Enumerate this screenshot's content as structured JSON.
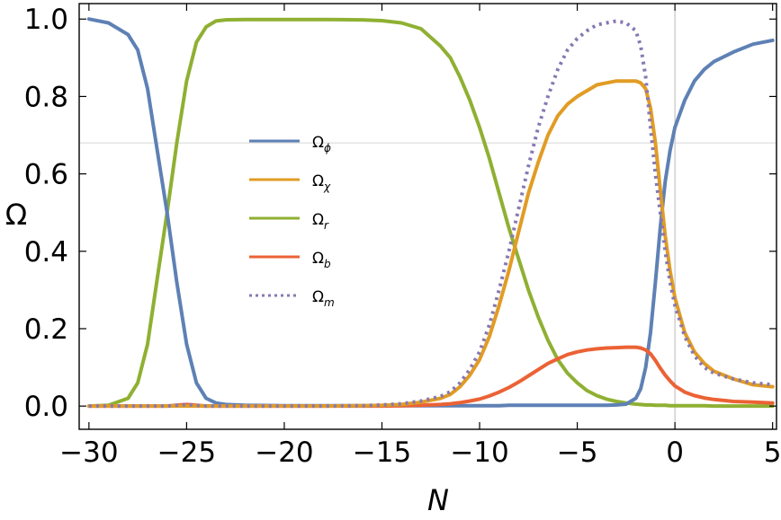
{
  "chart_data": {
    "type": "line",
    "xlabel": "N",
    "ylabel": "Ω",
    "xlim": [
      -30.5,
      5.2
    ],
    "ylim": [
      -0.06,
      1.04
    ],
    "xticks": [
      -30,
      -25,
      -20,
      -15,
      -10,
      -5,
      0,
      5
    ],
    "xtick_labels": [
      "−30",
      "−25",
      "−20",
      "−15",
      "−10",
      "−5",
      "0",
      "5"
    ],
    "yticks": [
      0.0,
      0.2,
      0.4,
      0.6,
      0.8,
      1.0
    ],
    "ytick_labels": [
      "0.0",
      "0.2",
      "0.4",
      "0.6",
      "0.8",
      "1.0"
    ],
    "reference_lines": {
      "vertical_x": 0,
      "horizontal_y": 0.68
    },
    "grid": false,
    "legend_position": "center-left",
    "x": [
      -30,
      -29,
      -28,
      -27.5,
      -27,
      -26.5,
      -26,
      -25.5,
      -25,
      -24.5,
      -24,
      -23.5,
      -23,
      -22,
      -20,
      -18,
      -16,
      -15,
      -14,
      -13,
      -12,
      -11.5,
      -11,
      -10.5,
      -10,
      -9.5,
      -9,
      -8.5,
      -8,
      -7.5,
      -7,
      -6.5,
      -6,
      -5.5,
      -5,
      -4.5,
      -4,
      -3.5,
      -3,
      -2.5,
      -2,
      -1.75,
      -1.5,
      -1.25,
      -1,
      -0.75,
      -0.5,
      -0.25,
      0,
      0.5,
      1,
      1.5,
      2,
      3,
      4,
      5
    ],
    "series": [
      {
        "name": "Ω",
        "subscript": "ϕ",
        "color": "#5e81b5",
        "dash": "solid",
        "values": [
          1.0,
          0.99,
          0.96,
          0.92,
          0.82,
          0.66,
          0.5,
          0.32,
          0.16,
          0.06,
          0.02,
          0.008,
          0.004,
          0.002,
          0.001,
          0.001,
          0.001,
          0.001,
          0.001,
          0.001,
          0.001,
          0.001,
          0.001,
          0.001,
          0.001,
          0.001,
          0.001,
          0.002,
          0.002,
          0.002,
          0.002,
          0.002,
          0.002,
          0.002,
          0.002,
          0.002,
          0.002,
          0.002,
          0.003,
          0.005,
          0.02,
          0.045,
          0.1,
          0.19,
          0.32,
          0.46,
          0.58,
          0.66,
          0.72,
          0.79,
          0.84,
          0.87,
          0.89,
          0.915,
          0.935,
          0.945
        ]
      },
      {
        "name": "Ω",
        "subscript": "χ",
        "color": "#e19c24",
        "dash": "solid",
        "values": [
          0,
          0,
          0,
          0,
          0,
          0,
          0,
          0,
          0,
          0,
          0,
          0,
          0,
          0,
          0,
          0,
          0.001,
          0.002,
          0.004,
          0.01,
          0.02,
          0.03,
          0.05,
          0.08,
          0.12,
          0.18,
          0.26,
          0.35,
          0.45,
          0.55,
          0.63,
          0.7,
          0.75,
          0.78,
          0.8,
          0.815,
          0.83,
          0.835,
          0.84,
          0.84,
          0.84,
          0.835,
          0.82,
          0.77,
          0.68,
          0.56,
          0.44,
          0.35,
          0.28,
          0.19,
          0.14,
          0.11,
          0.09,
          0.07,
          0.055,
          0.05
        ]
      },
      {
        "name": "Ω",
        "subscript": "r",
        "color": "#8fb032",
        "dash": "solid",
        "values": [
          0,
          0.002,
          0.02,
          0.06,
          0.16,
          0.33,
          0.5,
          0.68,
          0.84,
          0.94,
          0.98,
          0.995,
          0.998,
          0.999,
          0.999,
          0.999,
          0.998,
          0.996,
          0.99,
          0.975,
          0.93,
          0.9,
          0.85,
          0.79,
          0.72,
          0.64,
          0.55,
          0.46,
          0.38,
          0.3,
          0.23,
          0.17,
          0.12,
          0.085,
          0.06,
          0.04,
          0.027,
          0.018,
          0.012,
          0.008,
          0.005,
          0.004,
          0.003,
          0.003,
          0.002,
          0.002,
          0.002,
          0.001,
          0.001,
          0.001,
          0.001,
          0.001,
          0.0,
          0.0,
          0.0,
          0.0
        ]
      },
      {
        "name": "Ω",
        "subscript": "b",
        "color": "#eb6235",
        "dash": "solid",
        "values": [
          0,
          0,
          0,
          0,
          0,
          0,
          0,
          0.002,
          0.004,
          0.002,
          0,
          0,
          0,
          0,
          0,
          0,
          0,
          0,
          0.001,
          0.002,
          0.004,
          0.006,
          0.009,
          0.013,
          0.018,
          0.026,
          0.036,
          0.048,
          0.062,
          0.078,
          0.094,
          0.11,
          0.122,
          0.133,
          0.14,
          0.145,
          0.148,
          0.15,
          0.151,
          0.152,
          0.152,
          0.15,
          0.145,
          0.135,
          0.118,
          0.098,
          0.08,
          0.065,
          0.052,
          0.036,
          0.027,
          0.021,
          0.017,
          0.012,
          0.01,
          0.008
        ]
      },
      {
        "name": "Ω",
        "subscript": "m",
        "color": "#8778b3",
        "dash": "dotted",
        "values": [
          0,
          0,
          0,
          0,
          0,
          0,
          0,
          0.002,
          0.004,
          0.002,
          0,
          0,
          0,
          0,
          0,
          0,
          0.001,
          0.003,
          0.006,
          0.013,
          0.025,
          0.037,
          0.06,
          0.095,
          0.14,
          0.21,
          0.3,
          0.4,
          0.51,
          0.62,
          0.72,
          0.8,
          0.87,
          0.92,
          0.95,
          0.97,
          0.985,
          0.99,
          0.995,
          0.99,
          0.97,
          0.93,
          0.85,
          0.72,
          0.6,
          0.5,
          0.4,
          0.32,
          0.26,
          0.18,
          0.13,
          0.1,
          0.085,
          0.07,
          0.06,
          0.055
        ]
      }
    ]
  }
}
